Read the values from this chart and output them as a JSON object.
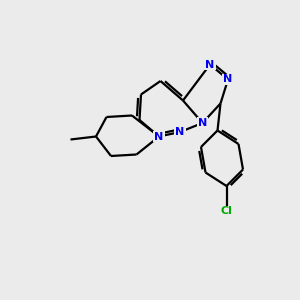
{
  "background_color": "#ebebeb",
  "bond_color": "#000000",
  "nitrogen_color": "#0000ee",
  "chlorine_color": "#00aa00",
  "line_width": 1.6,
  "figsize": [
    3.0,
    3.0
  ],
  "dpi": 100,
  "xlim": [
    0,
    10
  ],
  "ylim": [
    0,
    10
  ]
}
